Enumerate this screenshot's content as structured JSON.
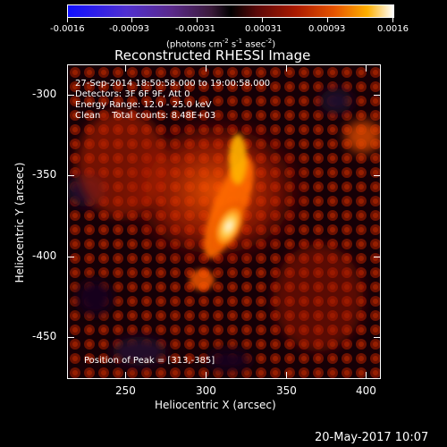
{
  "colorbar": {
    "ticks": [
      "-0.0016",
      "-0.00093",
      "-0.00031",
      "0.00031",
      "0.00093",
      "0.0016"
    ],
    "unit_text": "(photons cm",
    "unit_sup1": "-2",
    "unit_mid1": " s",
    "unit_sup2": "-1",
    "unit_mid2": " asec",
    "unit_sup3": "-2",
    "unit_end": ")"
  },
  "title": "Reconstructed RHESSI Image",
  "annotations": {
    "time_range": "27-Sep-2014 18:50:58.000 to 19:00:58.000",
    "detectors": "Detectors: 3F 6F 9F, Att 0",
    "energy": "Energy Range: 12.0 - 25.0 keV",
    "clean": "Clean    Total counts: 8.48E+03",
    "peak": "Position of Peak = [313,-385]"
  },
  "axes": {
    "xlabel": "Heliocentric X (arcsec)",
    "ylabel": "Heliocentric Y (arcsec)",
    "xticks": [
      "250",
      "300",
      "350",
      "400"
    ],
    "yticks": [
      "-300",
      "-350",
      "-400",
      "-450"
    ],
    "xrange": [
      215,
      420
    ],
    "yrange": [
      -280,
      -476
    ]
  },
  "footer_date": "20-May-2017 10:07",
  "colors": {
    "peak": "#ffffff",
    "background": "#000000",
    "source": "#ff4a00"
  }
}
